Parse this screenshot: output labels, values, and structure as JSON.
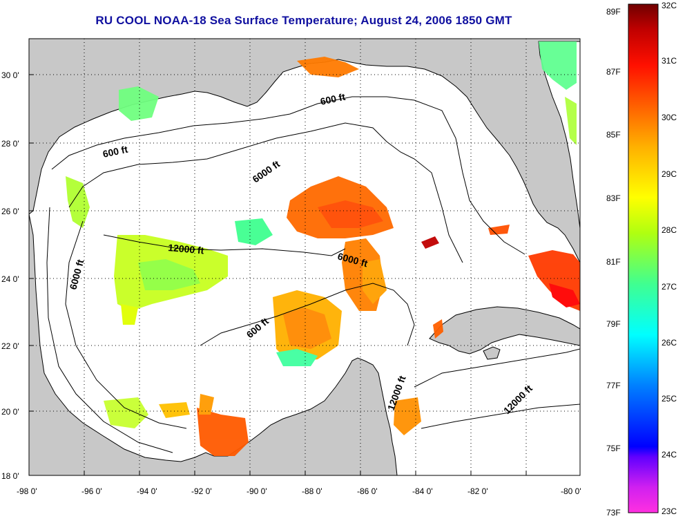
{
  "title": "RU COOL  NOAA-18  Sea Surface Temperature;  August 24, 2006 1850 GMT",
  "x_ticks": [
    "-98 0'",
    "-96 0'",
    "-94 0'",
    "-92 0'",
    "-90 0'",
    "-88 0'",
    "-86 0'",
    "-84 0'",
    "-82 0'",
    "-80 0'"
  ],
  "y_ticks": [
    "30 0'",
    "28 0'",
    "26 0'",
    "24 0'",
    "22 0'",
    "20 0'",
    "18 0'"
  ],
  "contour_labels": [
    "600 ft",
    "600 ft",
    "6000 ft",
    "12000 ft",
    "6000 ft",
    "6000 ft",
    "600 ft",
    "12000 ft",
    "12000 ft"
  ],
  "colorbar": {
    "fahrenheit": [
      "89F",
      "87F",
      "85F",
      "83F",
      "81F",
      "79F",
      "77F",
      "75F",
      "73F"
    ],
    "celsius": [
      "32C",
      "31C",
      "30C",
      "29C",
      "28C",
      "27C",
      "26C",
      "25C",
      "24C",
      "23C"
    ],
    "gradient_stops": [
      "#ff30e0",
      "#8000ff",
      "#0000ff",
      "#00a0ff",
      "#00ffff",
      "#40ff80",
      "#c0ff00",
      "#ffff00",
      "#ffa000",
      "#ff4000",
      "#ff0000",
      "#a00000",
      "#700000"
    ]
  },
  "colors": {
    "land": "#c8c8c8",
    "water": "#ffffff",
    "grid": "#000000",
    "title": "#1010a0"
  }
}
